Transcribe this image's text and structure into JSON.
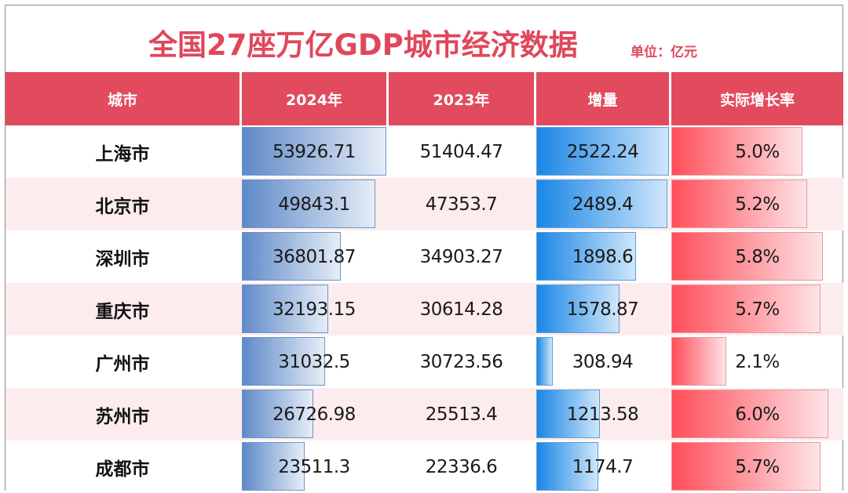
{
  "title": "全国27座万亿GDP城市经济数据",
  "unit": "单位：亿元",
  "header": {
    "city": "城市",
    "gdp_2024": "2024年",
    "gdp_2023": "2023年",
    "increase": "增量",
    "growth_rate": "实际增长率"
  },
  "colors": {
    "accent": "#e24a5e",
    "row_alt": "#fdecee",
    "bar_gdp": "#5e8ac8",
    "bar_increase": "#1a86e6",
    "bar_rate": "#ff4e59"
  },
  "rows": [
    {
      "city": "上海市",
      "gdp_2024": "53926.71",
      "gdp_2023": "51404.47",
      "increase": "2522.24",
      "growth_rate": "5.0%"
    },
    {
      "city": "北京市",
      "gdp_2024": "49843.1",
      "gdp_2023": "47353.7",
      "increase": "2489.4",
      "growth_rate": "5.2%"
    },
    {
      "city": "深圳市",
      "gdp_2024": "36801.87",
      "gdp_2023": "34903.27",
      "increase": "1898.6",
      "growth_rate": "5.8%"
    },
    {
      "city": "重庆市",
      "gdp_2024": "32193.15",
      "gdp_2023": "30614.28",
      "increase": "1578.87",
      "growth_rate": "5.7%"
    },
    {
      "city": "广州市",
      "gdp_2024": "31032.5",
      "gdp_2023": "30723.56",
      "increase": "308.94",
      "growth_rate": "2.1%"
    },
    {
      "city": "苏州市",
      "gdp_2024": "26726.98",
      "gdp_2023": "25513.4",
      "increase": "1213.58",
      "growth_rate": "6.0%"
    },
    {
      "city": "成都市",
      "gdp_2024": "23511.3",
      "gdp_2023": "22336.6",
      "increase": "1174.7",
      "growth_rate": "5.7%"
    }
  ],
  "chart_data": {
    "type": "table",
    "title": "全国27座万亿GDP城市经济数据",
    "subtitle": "单位：亿元",
    "columns": [
      "城市",
      "2024年",
      "2023年",
      "增量",
      "实际增长率"
    ],
    "categories": [
      "上海市",
      "北京市",
      "深圳市",
      "重庆市",
      "广州市",
      "苏州市",
      "成都市"
    ],
    "series": [
      {
        "name": "2024年",
        "values": [
          53926.71,
          49843.1,
          36801.87,
          32193.15,
          31032.5,
          26726.98,
          23511.3
        ],
        "data_bars": true
      },
      {
        "name": "2023年",
        "values": [
          51404.47,
          47353.7,
          34903.27,
          30614.28,
          30723.56,
          25513.4,
          22336.6
        ],
        "data_bars": false
      },
      {
        "name": "增量",
        "values": [
          2522.24,
          2489.4,
          1898.6,
          1578.87,
          308.94,
          1213.58,
          1174.7
        ],
        "data_bars": true
      },
      {
        "name": "实际增长率",
        "values": [
          5.0,
          5.2,
          5.8,
          5.7,
          2.1,
          6.0,
          5.7
        ],
        "unit": "%",
        "data_bars": true
      }
    ]
  }
}
